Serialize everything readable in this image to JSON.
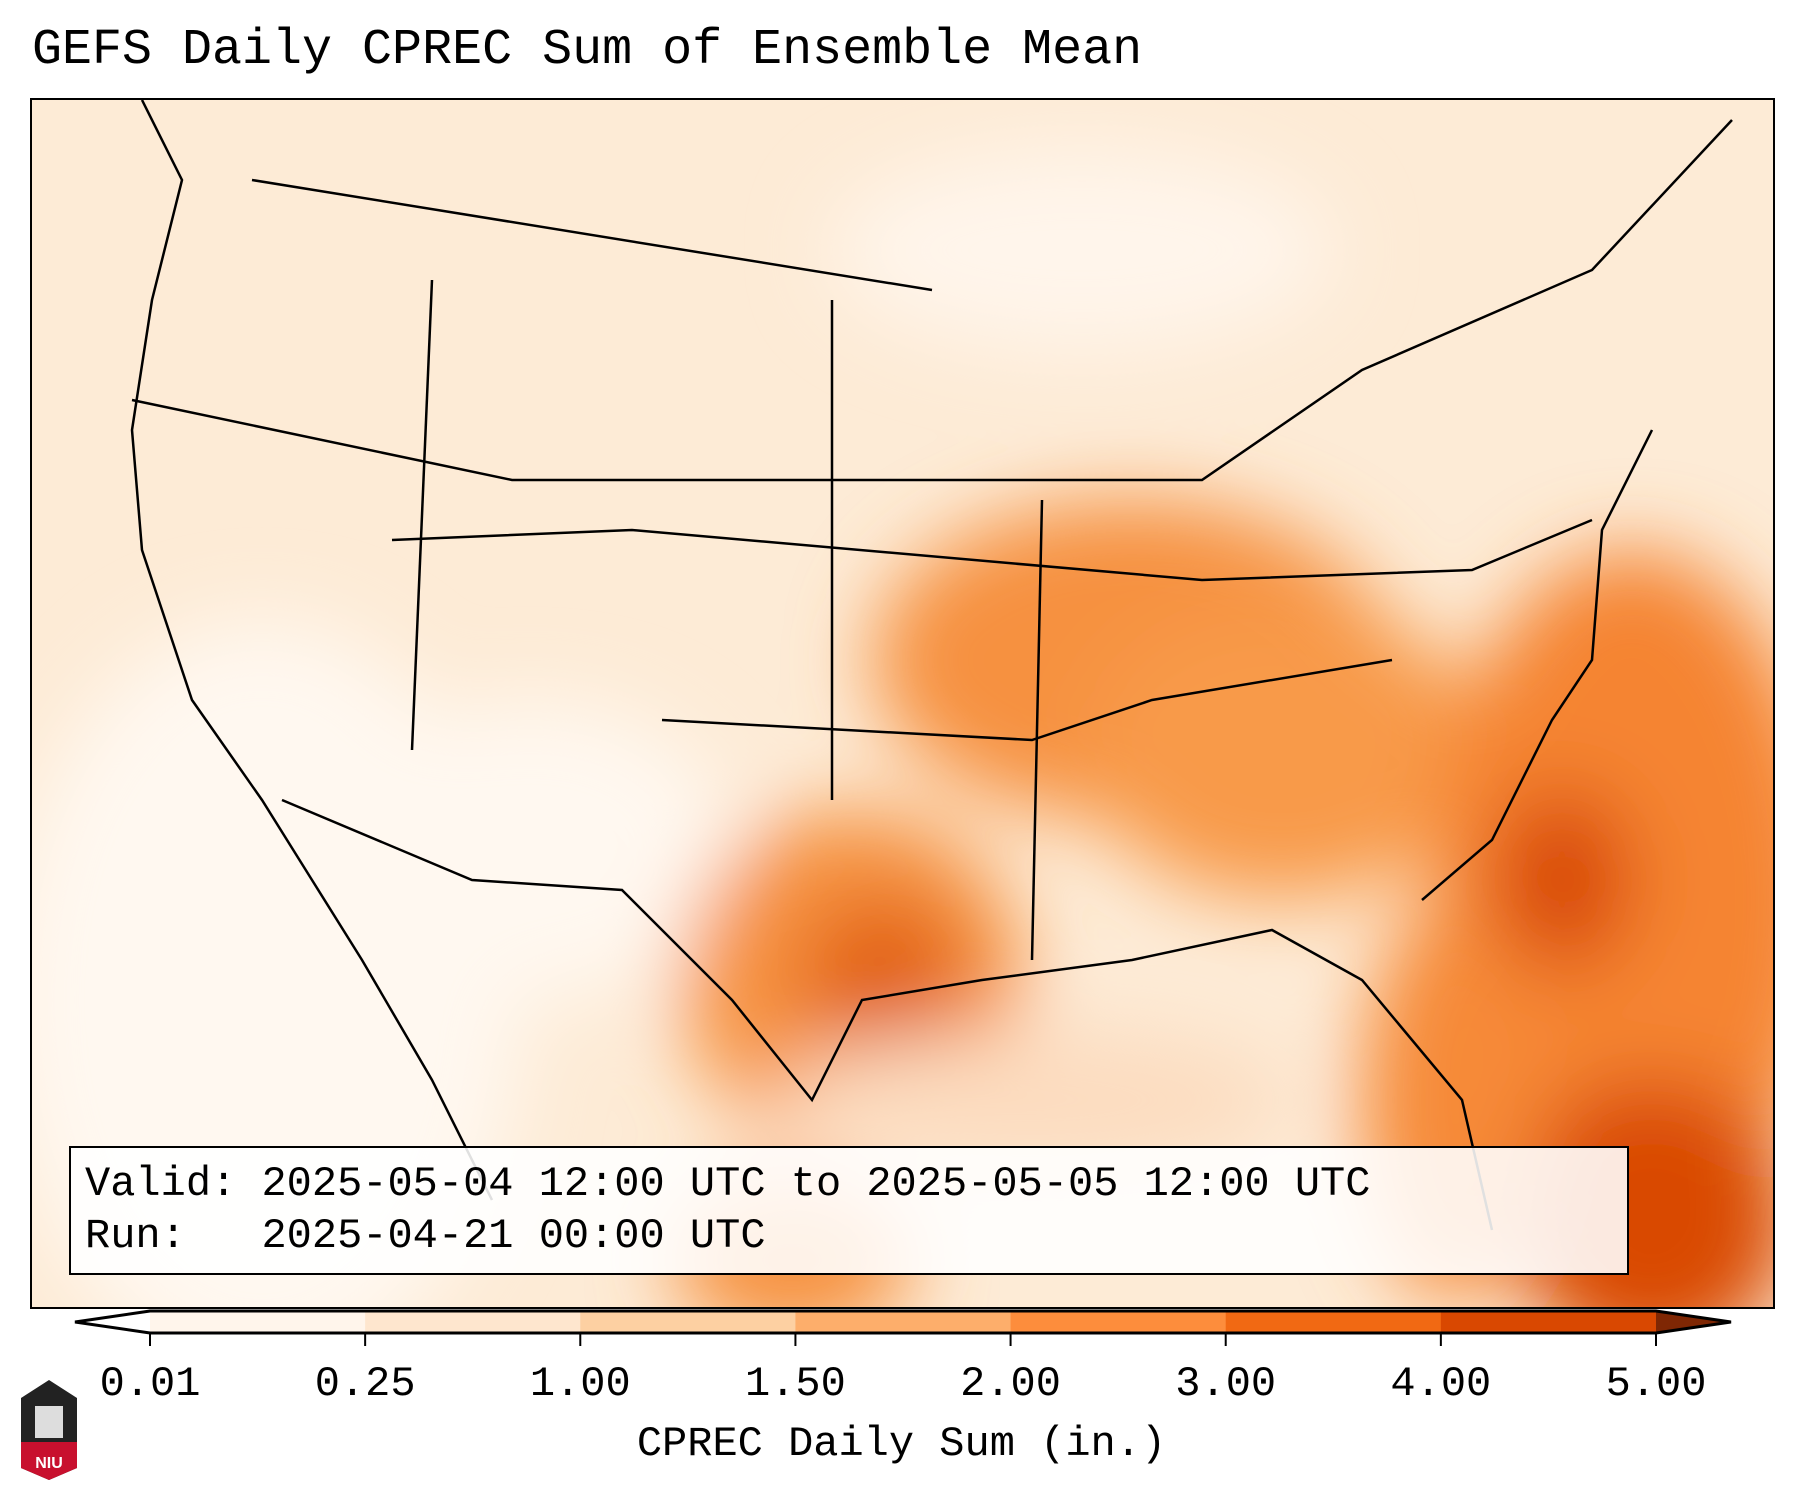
{
  "title": "GEFS Daily CPREC Sum of Ensemble Mean",
  "legend": {
    "valid_label": "Valid:",
    "valid_value": "2025-05-04 12:00 UTC to 2025-05-05 12:00 UTC",
    "run_label": "Run:",
    "run_value": "2025-04-21 00:00 UTC"
  },
  "colorbar": {
    "label": "CPREC Daily Sum (in.)",
    "ticks": [
      "0.01",
      "0.25",
      "1.00",
      "1.50",
      "2.00",
      "3.00",
      "4.00",
      "5.00"
    ],
    "colors": [
      "#fff5eb",
      "#fee6ce",
      "#fdd0a2",
      "#fdae6b",
      "#fd8d3c",
      "#f16913",
      "#d94801"
    ],
    "under_color": "#ffffff",
    "over_color": "#7f2704"
  },
  "logo": {
    "text": "NIU"
  }
}
